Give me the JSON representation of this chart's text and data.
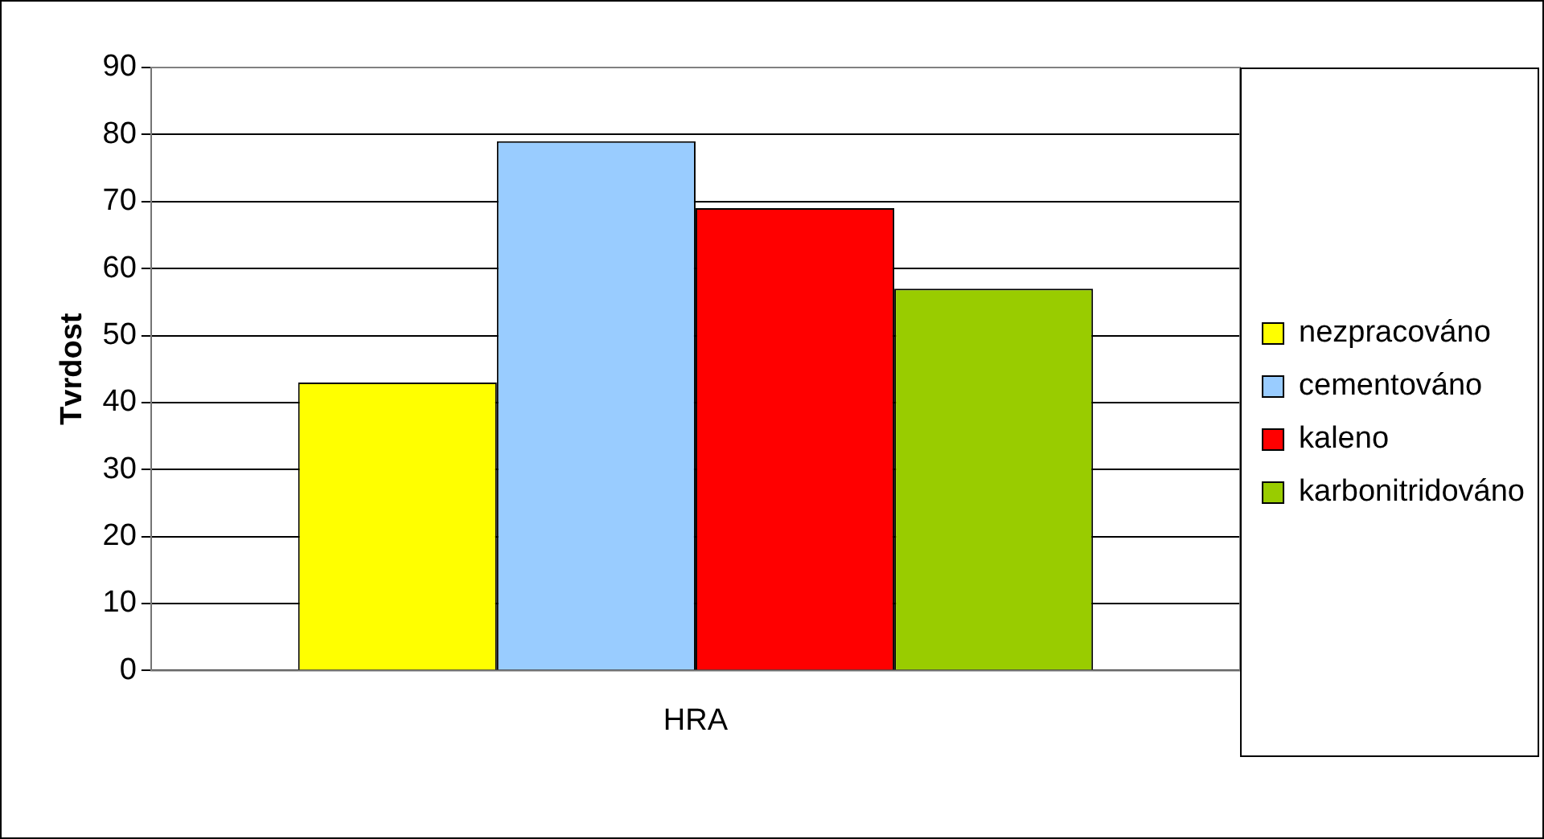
{
  "chart_data": {
    "type": "bar",
    "ylabel": "Tvrdost",
    "categories": [
      "HRA"
    ],
    "series": [
      {
        "name": "nezpracováno",
        "color": "#ffff00",
        "values": [
          43
        ]
      },
      {
        "name": "cementováno",
        "color": "#99ccff",
        "values": [
          79
        ]
      },
      {
        "name": "kaleno",
        "color": "#ff0000",
        "values": [
          69
        ]
      },
      {
        "name": "karbonitridováno",
        "color": "#99cc00",
        "values": [
          57
        ]
      }
    ],
    "ylim": [
      0,
      90
    ],
    "yticks": [
      0,
      10,
      20,
      30,
      40,
      50,
      60,
      70,
      80,
      90
    ],
    "grid": "y",
    "legend": "right"
  }
}
